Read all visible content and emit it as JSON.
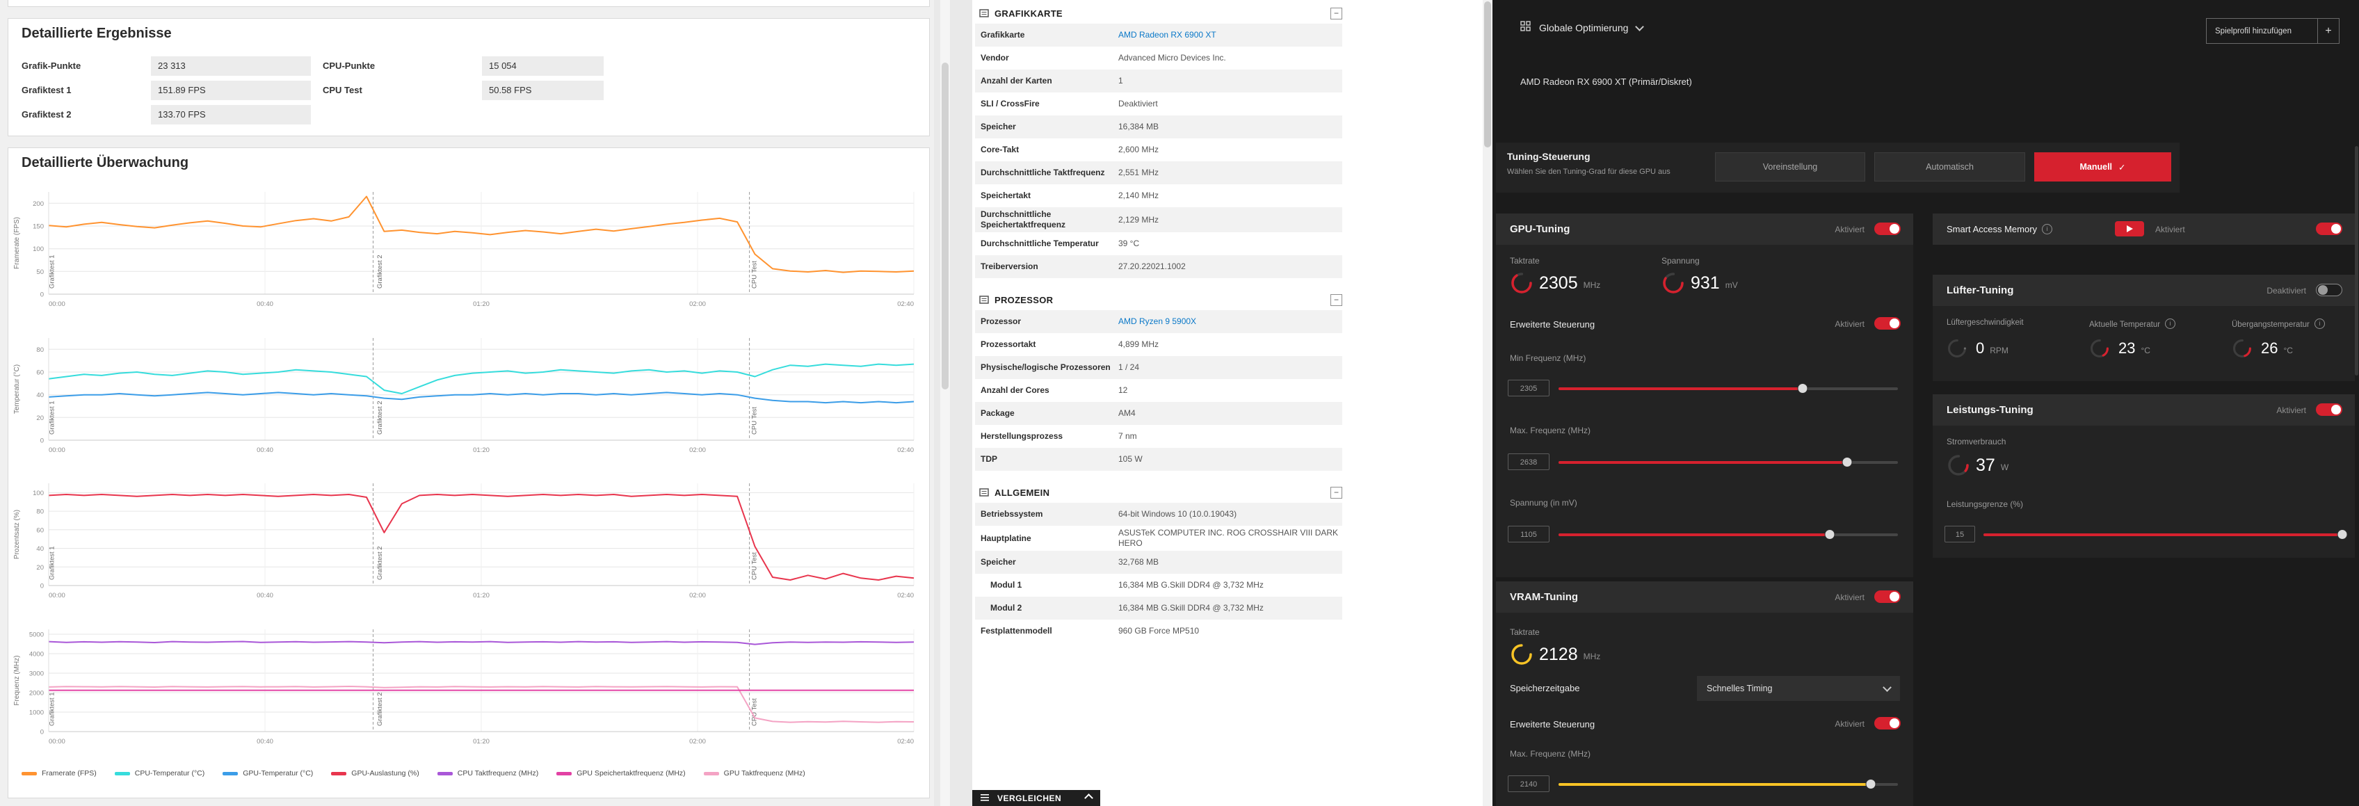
{
  "benchmark": {
    "results": {
      "title": "Detaillierte Ergebnisse",
      "rows": [
        {
          "c1_label": "Grafik-Punkte",
          "c1_value": "23 313",
          "c2_label": "CPU-Punkte",
          "c2_value": "15 054"
        },
        {
          "c1_label": "Grafiktest 1",
          "c1_value": "151.89 FPS",
          "c2_label": "CPU Test",
          "c2_value": "50.58 FPS"
        },
        {
          "c1_label": "Grafiktest 2",
          "c1_value": "133.70 FPS"
        }
      ]
    },
    "monitoring": {
      "title": "Detaillierte Überwachung"
    },
    "legend": [
      {
        "label": "Framerate (FPS)",
        "color": "#ff9330"
      },
      {
        "label": "CPU-Temperatur (°C)",
        "color": "#36dcdc"
      },
      {
        "label": "GPU-Temperatur (°C)",
        "color": "#3b9de8"
      },
      {
        "label": "GPU-Auslastung (%)",
        "color": "#e8354d"
      },
      {
        "label": "CPU Taktfrequenz (MHz)",
        "color": "#a957d8"
      },
      {
        "label": "GPU Speichertaktfrequenz (MHz)",
        "color": "#e241a4"
      },
      {
        "label": "GPU Taktfrequenz (MHz)",
        "color": "#f4a3c4"
      }
    ],
    "compare_label": "VERGLEICHEN"
  },
  "chart_data": [
    {
      "type": "line",
      "name": "framerate",
      "ylabel": "Framerate (FPS)",
      "ymax": 225,
      "yticks": [
        0,
        50,
        100,
        150,
        200
      ],
      "xticks": [
        "00:00",
        "00:40",
        "01:20",
        "02:00",
        "02:40"
      ],
      "separators": [
        0.375,
        0.81
      ],
      "region_labels": [
        {
          "x": 0.006,
          "text": "Grafiktest 1"
        },
        {
          "x": 0.385,
          "text": "Grafiktest 2"
        },
        {
          "x": 0.818,
          "text": "CPU Test"
        }
      ],
      "series": [
        {
          "name": "Framerate (FPS)",
          "color": "#ff9330",
          "values": [
            151,
            148,
            154,
            158,
            153,
            149,
            146,
            152,
            157,
            161,
            156,
            150,
            148,
            155,
            162,
            166,
            161,
            170,
            215,
            138,
            141,
            136,
            133,
            138,
            135,
            131,
            136,
            140,
            137,
            133,
            138,
            143,
            139,
            144,
            149,
            154,
            158,
            163,
            167,
            159,
            88,
            56,
            51,
            49,
            52,
            48,
            51,
            50,
            49,
            51
          ]
        }
      ]
    },
    {
      "type": "line",
      "name": "temperature",
      "ylabel": "Temperatur (°C)",
      "ymax": 90,
      "yticks": [
        0,
        20,
        40,
        60,
        80
      ],
      "xticks": [
        "00:00",
        "00:40",
        "01:20",
        "02:00",
        "02:40"
      ],
      "separators": [
        0.375,
        0.81
      ],
      "region_labels": [
        {
          "x": 0.006,
          "text": "Grafiktest 1"
        },
        {
          "x": 0.385,
          "text": "Grafiktest 2"
        },
        {
          "x": 0.818,
          "text": "CPU Test"
        }
      ],
      "series": [
        {
          "name": "CPU-Temperatur (°C)",
          "color": "#36dcdc",
          "values": [
            54,
            56,
            58,
            57,
            59,
            60,
            58,
            57,
            59,
            61,
            60,
            58,
            59,
            60,
            62,
            61,
            60,
            58,
            56,
            44,
            41,
            47,
            53,
            57,
            59,
            60,
            61,
            59,
            60,
            62,
            61,
            60,
            59,
            61,
            62,
            60,
            61,
            59,
            61,
            60,
            56,
            62,
            66,
            65,
            67,
            66,
            65,
            67,
            66,
            67
          ]
        },
        {
          "name": "GPU-Temperatur (°C)",
          "color": "#3b9de8",
          "values": [
            38,
            39,
            40,
            40,
            41,
            40,
            39,
            40,
            41,
            42,
            41,
            40,
            41,
            42,
            41,
            40,
            41,
            40,
            39,
            37,
            36,
            38,
            39,
            40,
            40,
            41,
            40,
            41,
            40,
            41,
            41,
            40,
            41,
            40,
            41,
            42,
            41,
            40,
            41,
            40,
            37,
            35,
            34,
            34,
            33,
            34,
            33,
            34,
            33,
            34
          ]
        }
      ]
    },
    {
      "type": "line",
      "name": "percentage",
      "ylabel": "Prozentsatz (%)",
      "ymax": 110,
      "yticks": [
        0,
        20,
        40,
        60,
        80,
        100
      ],
      "xticks": [
        "00:00",
        "00:40",
        "01:20",
        "02:00",
        "02:40"
      ],
      "separators": [
        0.375,
        0.81
      ],
      "region_labels": [
        {
          "x": 0.006,
          "text": "Grafiktest 1"
        },
        {
          "x": 0.385,
          "text": "Grafiktest 2"
        },
        {
          "x": 0.818,
          "text": "CPU Test"
        }
      ],
      "series": [
        {
          "name": "GPU-Auslastung (%)",
          "color": "#e8354d",
          "values": [
            97,
            98,
            97,
            98,
            97,
            96,
            97,
            98,
            97,
            98,
            97,
            98,
            97,
            96,
            97,
            98,
            97,
            98,
            95,
            57,
            88,
            97,
            98,
            97,
            98,
            97,
            96,
            97,
            98,
            97,
            98,
            97,
            98,
            96,
            97,
            98,
            97,
            98,
            97,
            96,
            42,
            9,
            6,
            11,
            7,
            13,
            8,
            6,
            10,
            8
          ]
        }
      ]
    },
    {
      "type": "line",
      "name": "frequency",
      "ylabel": "Frequenz (MHz)",
      "ymax": 5250,
      "yticks": [
        0,
        1000,
        2000,
        3000,
        4000,
        5000
      ],
      "xticks": [
        "00:00",
        "00:40",
        "01:20",
        "02:00",
        "02:40"
      ],
      "separators": [
        0.375,
        0.81
      ],
      "region_labels": [
        {
          "x": 0.006,
          "text": "Grafiktest 1"
        },
        {
          "x": 0.385,
          "text": "Grafiktest 2"
        },
        {
          "x": 0.818,
          "text": "CPU Test"
        }
      ],
      "series": [
        {
          "name": "GPU Taktfrequenz (MHz)",
          "color": "#f4a3c4",
          "values": [
            2290,
            2310,
            2305,
            2295,
            2315,
            2300,
            2285,
            2310,
            2300,
            2290,
            2305,
            2315,
            2295,
            2300,
            2310,
            2290,
            2305,
            2320,
            2300,
            2260,
            2280,
            2300,
            2290,
            2310,
            2300,
            2290,
            2305,
            2295,
            2310,
            2300,
            2290,
            2310,
            2300,
            2295,
            2305,
            2315,
            2300,
            2290,
            2305,
            2300,
            700,
            520,
            480,
            510,
            490,
            530,
            500,
            480,
            510,
            500
          ]
        },
        {
          "name": "GPU Speichertaktfrequenz (MHz)",
          "color": "#e241a4",
          "values": [
            2122,
            2120,
            2121,
            2120,
            2122,
            2121,
            2120,
            2122,
            2120,
            2121,
            2120,
            2122,
            2121,
            2120,
            2121,
            2122,
            2120,
            2121,
            2120,
            2122,
            2120,
            2121,
            2122,
            2120,
            2121,
            2120,
            2122,
            2121,
            2120,
            2121,
            2122,
            2120,
            2121,
            2120,
            2122,
            2121,
            2120,
            2121,
            2122,
            2120,
            2121,
            2120,
            2122,
            2121,
            2120,
            2121,
            2120,
            2122,
            2121,
            2120
          ]
        },
        {
          "name": "CPU Taktfrequenz (MHz)",
          "color": "#a957d8",
          "values": [
            4620,
            4580,
            4610,
            4590,
            4615,
            4600,
            4570,
            4620,
            4600,
            4590,
            4610,
            4625,
            4580,
            4600,
            4615,
            4590,
            4605,
            4620,
            4600,
            4560,
            4600,
            4620,
            4590,
            4610,
            4600,
            4620,
            4580,
            4600,
            4610,
            4590,
            4620,
            4600,
            4610,
            4580,
            4600,
            4620,
            4590,
            4610,
            4600,
            4580,
            4480,
            4560,
            4600,
            4580,
            4600,
            4590,
            4610,
            4600,
            4580,
            4600
          ]
        }
      ]
    }
  ],
  "sysinfo": {
    "sections": [
      {
        "title": "GRAFIKKARTE",
        "rows": [
          {
            "label": "Grafikkarte",
            "value": "AMD Radeon RX 6900 XT",
            "link": true
          },
          {
            "label": "Vendor",
            "value": "Advanced Micro Devices Inc."
          },
          {
            "label": "Anzahl der Karten",
            "value": "1"
          },
          {
            "label": "SLI / CrossFire",
            "value": "Deaktiviert"
          },
          {
            "label": "Speicher",
            "value": "16,384 MB"
          },
          {
            "label": "Core-Takt",
            "value": "2,600 MHz"
          },
          {
            "label": "Durchschnittliche Taktfrequenz",
            "value": "2,551 MHz"
          },
          {
            "label": "Speichertakt",
            "value": "2,140 MHz"
          },
          {
            "label": "Durchschnittliche Speichertaktfrequenz",
            "value": "2,129 MHz"
          },
          {
            "label": "Durchschnittliche Temperatur",
            "value": "39 °C"
          },
          {
            "label": "Treiberversion",
            "value": "27.20.22021.1002"
          }
        ]
      },
      {
        "title": "PROZESSOR",
        "rows": [
          {
            "label": "Prozessor",
            "value": "AMD Ryzen 9 5900X",
            "link": true
          },
          {
            "label": "Prozessortakt",
            "value": "4,899 MHz"
          },
          {
            "label": "Physische/logische Prozessoren",
            "value": "1 / 24"
          },
          {
            "label": "Anzahl der Cores",
            "value": "12"
          },
          {
            "label": "Package",
            "value": "AM4"
          },
          {
            "label": "Herstellungsprozess",
            "value": "7 nm"
          },
          {
            "label": "TDP",
            "value": "105 W"
          }
        ]
      },
      {
        "title": "ALLGEMEIN",
        "rows": [
          {
            "label": "Betriebssystem",
            "value": "64-bit Windows 10 (10.0.19043)"
          },
          {
            "label": "Hauptplatine",
            "value": "ASUSTeK COMPUTER INC. ROG CROSSHAIR VIII DARK HERO"
          },
          {
            "label": "Speicher",
            "value": "32,768 MB"
          },
          {
            "label": "Modul 1",
            "value": "16,384 MB G.Skill DDR4 @ 3,732 MHz",
            "indent": true
          },
          {
            "label": "Modul 2",
            "value": "16,384 MB G.Skill DDR4 @ 3,732 MHz",
            "indent": true
          },
          {
            "label": "Festplattenmodell",
            "value": "960 GB Force MP510"
          }
        ]
      }
    ]
  },
  "radeon": {
    "profile_selector": "Globale Optimierung",
    "add_profile_button": "Spielprofil hinzufügen",
    "gpu_name": "AMD Radeon RX 6900 XT (Primär/Diskret)",
    "tuning_control": {
      "title": "Tuning-Steuerung",
      "subtitle": "Wählen Sie den Tuning-Grad für diese GPU aus",
      "buttons": [
        "Voreinstellung",
        "Automatisch",
        "Manuell"
      ],
      "selected": "Manuell"
    },
    "gpu_tuning": {
      "title": "GPU-Tuning",
      "status": "Aktiviert",
      "clock": {
        "label": "Taktrate",
        "value": "2305",
        "unit": "MHz",
        "gauge": {
          "color": "#d6212e",
          "frac": 0.87
        }
      },
      "voltage": {
        "label": "Spannung",
        "value": "931",
        "unit": "mV",
        "gauge": {
          "color": "#d6212e",
          "frac": 0.78
        }
      },
      "advanced": {
        "label": "Erweiterte Steuerung",
        "status": "Aktiviert"
      },
      "min_freq": {
        "label": "Min Frequenz (MHz)",
        "value": "2305",
        "percent": 72,
        "color": "#d6212e"
      },
      "max_freq": {
        "label": "Max. Frequenz (MHz)",
        "value": "2638",
        "percent": 85,
        "color": "#d6212e"
      },
      "voltage_slider": {
        "label": "Spannung (in mV)",
        "value": "1105",
        "percent": 80,
        "color": "#d6212e"
      }
    },
    "vram_tuning": {
      "title": "VRAM-Tuning",
      "status": "Aktiviert",
      "clock": {
        "label": "Taktrate",
        "value": "2128",
        "unit": "MHz",
        "gauge": {
          "color": "#f7c325",
          "frac": 0.99
        }
      },
      "memory_timing": {
        "label": "Speicherzeitgabe",
        "value": "Schnelles Timing"
      },
      "advanced": {
        "label": "Erweiterte Steuerung",
        "status": "Aktiviert"
      },
      "max_freq": {
        "label": "Max. Frequenz (MHz)",
        "value": "2140",
        "percent": 92,
        "color": "#f7c325"
      }
    },
    "sam": {
      "label": "Smart Access Memory",
      "status": "Aktiviert"
    },
    "fan_tuning": {
      "title": "Lüfter-Tuning",
      "status": "Deaktiviert",
      "metrics": [
        {
          "label": "Lüftergeschwindigkeit",
          "value": "0",
          "unit": "RPM",
          "gauge": {
            "color": "#6a6a6a",
            "frac": 0
          }
        },
        {
          "label": "Aktuelle Temperatur",
          "value": "23",
          "unit": "°C",
          "info": true,
          "gauge": {
            "color": "#d6212e",
            "frac": 0.23
          }
        },
        {
          "label": "Übergangstemperatur",
          "value": "26",
          "unit": "°C",
          "info": true,
          "gauge": {
            "color": "#d6212e",
            "frac": 0.26
          }
        }
      ]
    },
    "power_tuning": {
      "title": "Leistungs-Tuning",
      "status": "Aktiviert",
      "consumption": {
        "label": "Stromverbrauch",
        "value": "37",
        "unit": "W",
        "gauge": {
          "color": "#d6212e",
          "frac": 0.14
        }
      },
      "power_limit": {
        "label": "Leistungsgrenze (%)",
        "value": "15",
        "percent": 100,
        "color": "#d6212e"
      }
    }
  },
  "colors": {
    "amd_red": "#d6212e",
    "vram_yellow": "#f7c325",
    "link_blue": "#0a78c8"
  }
}
